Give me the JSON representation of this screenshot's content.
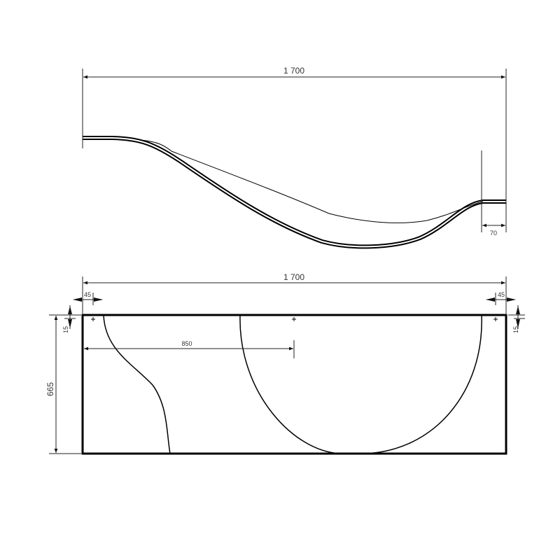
{
  "dimensions": {
    "top_length": "1 700",
    "top_rim_width": "70",
    "front_length": "1 700",
    "left_offset": "45",
    "right_offset": "45",
    "left_top_offset": "15",
    "right_top_offset": "15",
    "height": "665",
    "mid_offset": "850"
  },
  "colors": {
    "line": "#000000",
    "dimension": "#222222"
  }
}
